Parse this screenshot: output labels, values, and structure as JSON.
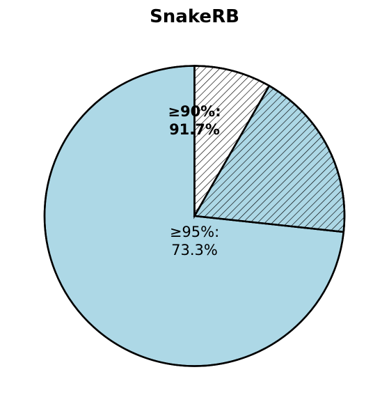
{
  "chart_data": {
    "type": "pie",
    "title": "SnakeRB",
    "start_angle_deg": 90,
    "direction": "counterclockwise",
    "slices": [
      {
        "label_lines": [
          "≥95%:",
          "73.3%"
        ],
        "label_bold": false,
        "value": 73.3,
        "color": "#add8e6",
        "hatch": false
      },
      {
        "label_lines": [],
        "label_bold": false,
        "value": 18.4,
        "color": "#add8e6",
        "hatch": true
      },
      {
        "label_lines": [
          "≥90%:",
          "91.7%"
        ],
        "label_bold": true,
        "value": 8.3,
        "color": "#ffffff",
        "hatch": true
      }
    ],
    "edge_color": "#000000"
  }
}
